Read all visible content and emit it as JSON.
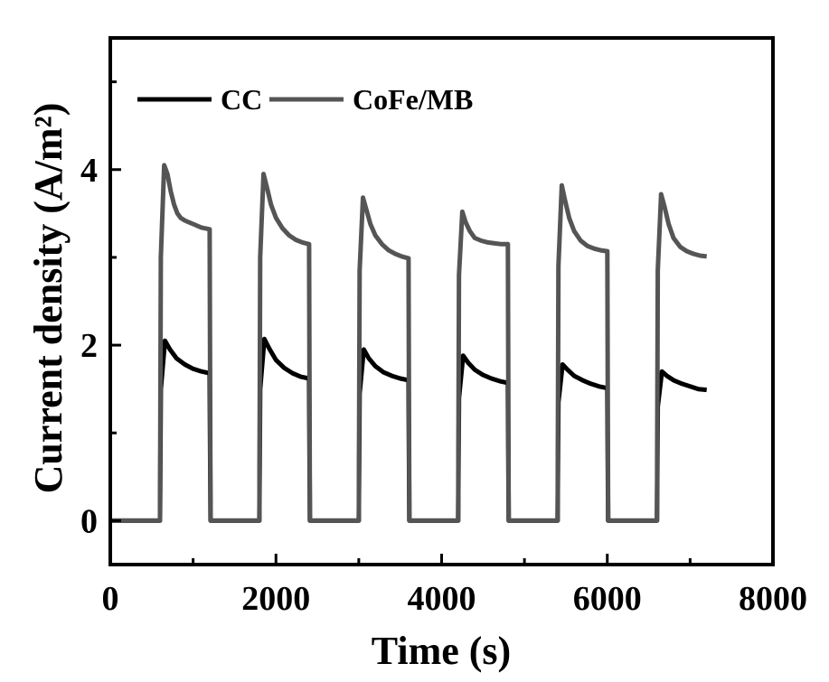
{
  "chart_data": {
    "type": "line",
    "xlabel": "Time (s)",
    "ylabel": "Current density (A/m²)",
    "xlim": [
      0,
      8000
    ],
    "ylim": [
      -0.5,
      5.5
    ],
    "xticks": [
      0,
      2000,
      4000,
      6000,
      8000
    ],
    "yticks": [
      0,
      2,
      4
    ],
    "xtick_labels": [
      "0",
      "2000",
      "4000",
      "6000",
      "8000"
    ],
    "ytick_labels": [
      "0",
      "2",
      "4"
    ],
    "grid": false,
    "legend_position": "top-left",
    "series": [
      {
        "name": "CC",
        "color": "#000000",
        "x": [
          0,
          600,
          610,
          660,
          720,
          800,
          900,
          1000,
          1100,
          1200,
          1210,
          1800,
          1810,
          1860,
          1920,
          2000,
          2100,
          2200,
          2300,
          2400,
          2410,
          3000,
          3010,
          3060,
          3120,
          3200,
          3300,
          3400,
          3500,
          3600,
          3610,
          4200,
          4210,
          4260,
          4320,
          4400,
          4500,
          4600,
          4700,
          4800,
          4810,
          5400,
          5410,
          5460,
          5520,
          5600,
          5700,
          5800,
          5900,
          6000,
          6010,
          6600,
          6610,
          6660,
          6720,
          6800,
          6900,
          7000,
          7100,
          7200
        ],
        "y": [
          0,
          0,
          1.5,
          2.05,
          1.95,
          1.85,
          1.78,
          1.73,
          1.7,
          1.68,
          0,
          0,
          1.5,
          2.07,
          1.96,
          1.83,
          1.74,
          1.68,
          1.64,
          1.62,
          0,
          0,
          1.45,
          1.95,
          1.85,
          1.76,
          1.69,
          1.65,
          1.62,
          1.6,
          0,
          0,
          1.4,
          1.88,
          1.8,
          1.72,
          1.66,
          1.62,
          1.59,
          1.57,
          0,
          0,
          1.35,
          1.78,
          1.72,
          1.65,
          1.6,
          1.56,
          1.53,
          1.51,
          0,
          0,
          1.3,
          1.7,
          1.65,
          1.6,
          1.56,
          1.53,
          1.5,
          1.49
        ]
      },
      {
        "name": "CoFe/MB",
        "color": "#555555",
        "x": [
          0,
          600,
          610,
          650,
          690,
          730,
          770,
          810,
          850,
          900,
          950,
          1000,
          1100,
          1200,
          1210,
          1800,
          1810,
          1850,
          1890,
          1940,
          2000,
          2080,
          2160,
          2240,
          2320,
          2400,
          2410,
          3000,
          3010,
          3050,
          3090,
          3140,
          3200,
          3280,
          3360,
          3440,
          3520,
          3600,
          3610,
          4200,
          4210,
          4250,
          4290,
          4340,
          4400,
          4480,
          4560,
          4640,
          4720,
          4800,
          4810,
          5400,
          5410,
          5450,
          5490,
          5540,
          5600,
          5680,
          5760,
          5840,
          5920,
          6000,
          6010,
          6600,
          6610,
          6650,
          6690,
          6740,
          6800,
          6880,
          6960,
          7040,
          7120,
          7200
        ],
        "y": [
          0,
          0,
          3.0,
          4.05,
          3.95,
          3.75,
          3.6,
          3.5,
          3.45,
          3.42,
          3.4,
          3.38,
          3.34,
          3.32,
          0,
          0,
          3.0,
          3.95,
          3.8,
          3.6,
          3.45,
          3.33,
          3.25,
          3.2,
          3.17,
          3.15,
          0,
          0,
          2.85,
          3.68,
          3.55,
          3.38,
          3.25,
          3.15,
          3.08,
          3.04,
          3.01,
          2.99,
          0,
          0,
          2.8,
          3.52,
          3.4,
          3.3,
          3.22,
          3.19,
          3.17,
          3.16,
          3.15,
          3.15,
          0,
          0,
          2.9,
          3.82,
          3.65,
          3.45,
          3.3,
          3.19,
          3.13,
          3.1,
          3.08,
          3.07,
          0,
          0,
          2.85,
          3.72,
          3.58,
          3.38,
          3.22,
          3.12,
          3.07,
          3.04,
          3.02,
          3.01
        ]
      }
    ]
  }
}
